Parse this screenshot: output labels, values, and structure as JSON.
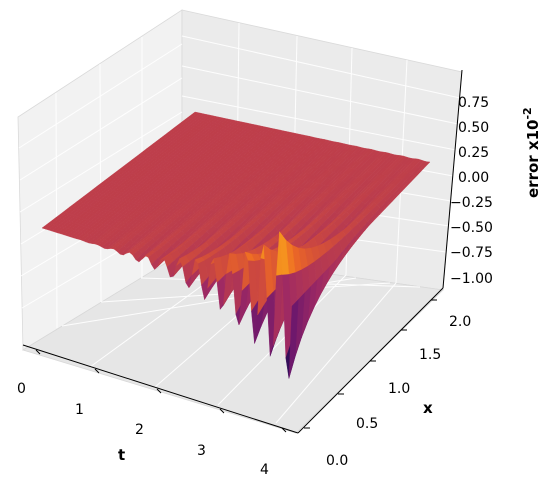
{
  "chart_data": {
    "type": "surface3d",
    "title": "",
    "xlabel": "t",
    "ylabel": "x",
    "zlabel": "error x10",
    "zlabel_exponent": "-2",
    "t_ticks": [
      "0",
      "1",
      "2",
      "3",
      "4"
    ],
    "x_ticks": [
      "0.0",
      "0.5",
      "1.0",
      "1.5",
      "2.0"
    ],
    "z_ticks": [
      "−1.00",
      "−0.75",
      "−0.50",
      "−0.25",
      "0.00",
      "0.25",
      "0.50",
      "0.75"
    ],
    "t_range": [
      0,
      4
    ],
    "x_range": [
      0,
      2
    ],
    "z_range": [
      -1.0,
      0.8
    ],
    "colormap": "inferno",
    "grid": true,
    "pane_color": "#f2f2f2",
    "surface_description_values": {
      "baseline_error": 0.0,
      "max_amplitude": 0.8,
      "min_amplitude": -1.0,
      "oscillation_region": "large t near x = 0; oscillations grow with t and decay with x"
    }
  }
}
